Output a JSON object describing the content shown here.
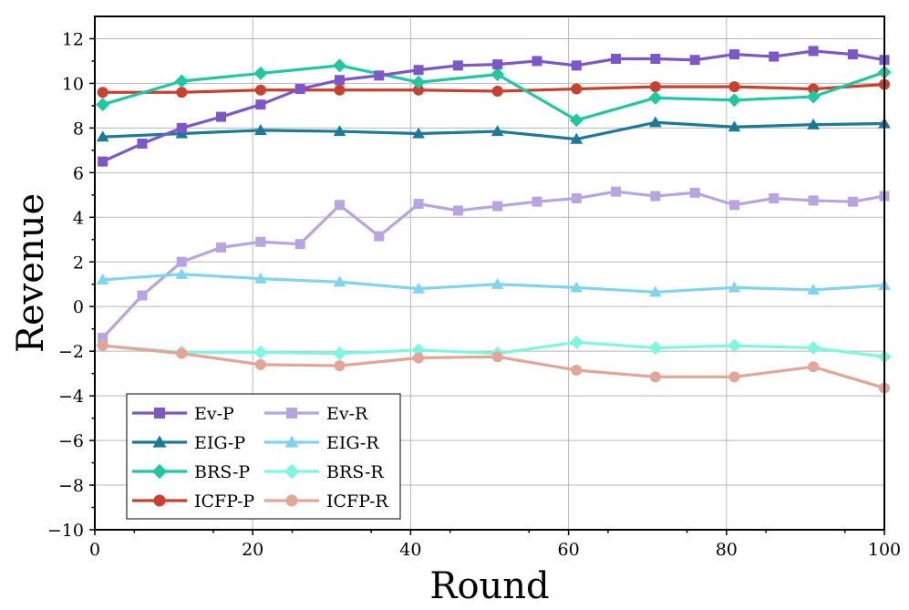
{
  "chart_data": {
    "type": "line",
    "xlabel": "Round",
    "ylabel": "Revenue",
    "xlim": [
      0,
      100
    ],
    "ylim": [
      -10,
      13
    ],
    "xticks": [
      0,
      20,
      40,
      60,
      80,
      100
    ],
    "yticks": [
      -10,
      -8,
      -6,
      -4,
      -2,
      0,
      2,
      4,
      6,
      8,
      10,
      12
    ],
    "grid": true,
    "legend_position": "lower-left",
    "series": [
      {
        "name": "Ev-P",
        "color": "#7b57c9",
        "marker": "square",
        "x": [
          1,
          6,
          11,
          16,
          21,
          26,
          31,
          36,
          41,
          46,
          51,
          56,
          61,
          66,
          71,
          76,
          81,
          86,
          91,
          96,
          100
        ],
        "y": [
          6.5,
          7.3,
          8.0,
          8.5,
          9.05,
          9.75,
          10.15,
          10.35,
          10.6,
          10.8,
          10.85,
          11.0,
          10.8,
          11.1,
          11.1,
          11.05,
          11.3,
          11.2,
          11.45,
          11.3,
          11.05
        ]
      },
      {
        "name": "Ev-R",
        "color": "#b8a4e0",
        "marker": "square",
        "x": [
          1,
          6,
          11,
          16,
          21,
          26,
          31,
          36,
          41,
          46,
          51,
          56,
          61,
          66,
          71,
          76,
          81,
          86,
          91,
          96,
          100
        ],
        "y": [
          -1.4,
          0.5,
          2.0,
          2.65,
          2.9,
          2.8,
          4.55,
          3.15,
          4.6,
          4.3,
          4.5,
          4.7,
          4.85,
          5.15,
          4.95,
          5.1,
          4.55,
          4.85,
          4.75,
          4.7,
          4.95
        ]
      },
      {
        "name": "EIG-P",
        "color": "#1a7a98",
        "marker": "triangle",
        "x": [
          1,
          11,
          21,
          31,
          41,
          51,
          61,
          71,
          81,
          91,
          100
        ],
        "y": [
          7.6,
          7.75,
          7.9,
          7.85,
          7.75,
          7.85,
          7.5,
          8.25,
          8.05,
          8.15,
          8.2
        ]
      },
      {
        "name": "EIG-R",
        "color": "#7fd4ee",
        "marker": "triangle",
        "x": [
          1,
          11,
          21,
          31,
          41,
          51,
          61,
          71,
          81,
          91,
          100
        ],
        "y": [
          1.2,
          1.45,
          1.25,
          1.1,
          0.8,
          1.0,
          0.85,
          0.65,
          0.85,
          0.75,
          0.95
        ]
      },
      {
        "name": "BRS-P",
        "color": "#1ec8a0",
        "marker": "diamond",
        "x": [
          1,
          11,
          21,
          31,
          41,
          51,
          61,
          71,
          81,
          91,
          100
        ],
        "y": [
          9.05,
          10.1,
          10.45,
          10.8,
          10.05,
          10.4,
          8.35,
          9.35,
          9.25,
          9.4,
          10.5
        ]
      },
      {
        "name": "BRS-R",
        "color": "#7cf8e0",
        "marker": "diamond",
        "x": [
          1,
          11,
          21,
          31,
          41,
          51,
          61,
          71,
          81,
          91,
          100
        ],
        "y": [
          -1.75,
          -2.05,
          -2.05,
          -2.1,
          -1.95,
          -2.1,
          -1.6,
          -1.85,
          -1.75,
          -1.85,
          -2.25
        ]
      },
      {
        "name": "ICFP-P",
        "color": "#c9402c",
        "marker": "circle",
        "x": [
          1,
          11,
          21,
          31,
          41,
          51,
          61,
          71,
          81,
          91,
          100
        ],
        "y": [
          9.6,
          9.6,
          9.7,
          9.7,
          9.7,
          9.65,
          9.75,
          9.85,
          9.85,
          9.75,
          9.95
        ]
      },
      {
        "name": "ICFP-R",
        "color": "#e3a595",
        "marker": "circle",
        "x": [
          1,
          11,
          21,
          31,
          41,
          51,
          61,
          71,
          81,
          91,
          100
        ],
        "y": [
          -1.75,
          -2.1,
          -2.6,
          -2.65,
          -2.3,
          -2.25,
          -2.85,
          -3.15,
          -3.15,
          -2.7,
          -3.65
        ]
      }
    ]
  }
}
